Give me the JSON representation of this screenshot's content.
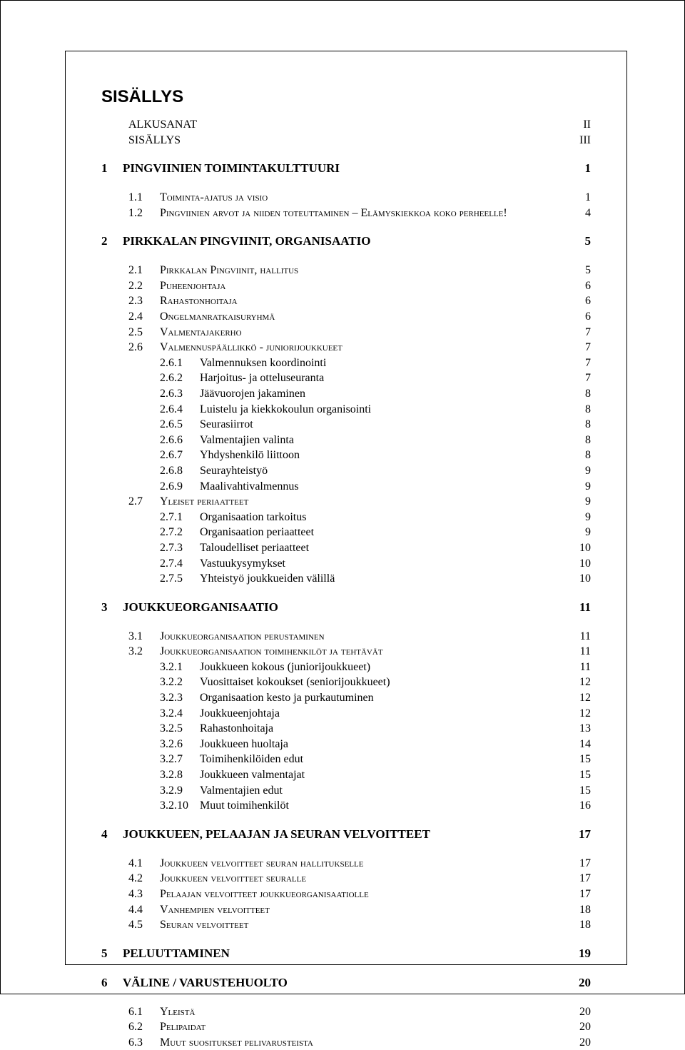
{
  "title": "SISÄLLYS",
  "front": [
    {
      "label": "ALKUSANAT",
      "page": "II"
    },
    {
      "label": "SISÄLLYS",
      "page": "III"
    }
  ],
  "chapters": [
    {
      "num": "1",
      "title": "PINGVIINIEN TOIMINTAKULTTUURI",
      "page": "1",
      "sections": [
        {
          "num": "1.1",
          "title": "Toiminta-ajatus ja visio",
          "page": "1",
          "sc": true
        },
        {
          "num": "1.2",
          "title": "Pingviinien arvot ja niiden toteuttaminen – Elämyskiekkoa koko perheelle!",
          "page": "4",
          "sc": true
        }
      ]
    },
    {
      "num": "2",
      "title": "PIRKKALAN PINGVIINIT, ORGANISAATIO",
      "page": "5",
      "sections": [
        {
          "num": "2.1",
          "title": "Pirkkalan Pingviinit, hallitus",
          "page": "5",
          "sc": true
        },
        {
          "num": "2.2",
          "title": "Puheenjohtaja",
          "page": "6",
          "sc": true
        },
        {
          "num": "2.3",
          "title": "Rahastonhoitaja",
          "page": "6",
          "sc": true
        },
        {
          "num": "2.4",
          "title": "Ongelmanratkaisuryhmä",
          "page": "6",
          "sc": true
        },
        {
          "num": "2.5",
          "title": "Valmentajakerho",
          "page": "7",
          "sc": true
        },
        {
          "num": "2.6",
          "title": "Valmennuspäällikkö - juniorijoukkueet",
          "page": "7",
          "sc": true,
          "subs": [
            {
              "num": "2.6.1",
              "title": "Valmennuksen koordinointi",
              "page": "7"
            },
            {
              "num": "2.6.2",
              "title": "Harjoitus- ja otteluseuranta",
              "page": "7"
            },
            {
              "num": "2.6.3",
              "title": "Jäävuorojen jakaminen",
              "page": "8"
            },
            {
              "num": "2.6.4",
              "title": "Luistelu ja kiekkokoulun organisointi",
              "page": "8"
            },
            {
              "num": "2.6.5",
              "title": "Seurasiirrot",
              "page": "8"
            },
            {
              "num": "2.6.6",
              "title": "Valmentajien valinta",
              "page": "8"
            },
            {
              "num": "2.6.7",
              "title": "Yhdyshenkilö liittoon",
              "page": "8"
            },
            {
              "num": "2.6.8",
              "title": "Seurayhteistyö",
              "page": "9"
            },
            {
              "num": "2.6.9",
              "title": "Maalivahtivalmennus",
              "page": "9"
            }
          ]
        },
        {
          "num": "2.7",
          "title": "Yleiset periaatteet",
          "page": "9",
          "sc": true,
          "subs": [
            {
              "num": "2.7.1",
              "title": "Organisaation tarkoitus",
              "page": "9"
            },
            {
              "num": "2.7.2",
              "title": "Organisaation periaatteet",
              "page": "9"
            },
            {
              "num": "2.7.3",
              "title": "Taloudelliset periaatteet",
              "page": "10"
            },
            {
              "num": "2.7.4",
              "title": "Vastuukysymykset",
              "page": "10"
            },
            {
              "num": "2.7.5",
              "title": "Yhteistyö joukkueiden välillä",
              "page": "10"
            }
          ]
        }
      ]
    },
    {
      "num": "3",
      "title": "JOUKKUEORGANISAATIO",
      "page": "11",
      "sections": [
        {
          "num": "3.1",
          "title": "Joukkueorganisaation perustaminen",
          "page": "11",
          "sc": true
        },
        {
          "num": "3.2",
          "title": "Joukkueorganisaation toimihenkilöt ja tehtävät",
          "page": "11",
          "sc": true,
          "subs": [
            {
              "num": "3.2.1",
              "title": "Joukkueen kokous (juniorijoukkueet)",
              "page": "11"
            },
            {
              "num": "3.2.2",
              "title": "Vuosittaiset kokoukset (seniorijoukkueet)",
              "page": "12"
            },
            {
              "num": "3.2.3",
              "title": "Organisaation kesto ja purkautuminen",
              "page": "12"
            },
            {
              "num": "3.2.4",
              "title": "Joukkueenjohtaja",
              "page": "12"
            },
            {
              "num": "3.2.5",
              "title": "Rahastonhoitaja",
              "page": "13"
            },
            {
              "num": "3.2.6",
              "title": "Joukkueen huoltaja",
              "page": "14"
            },
            {
              "num": "3.2.7",
              "title": "Toimihenkilöiden edut",
              "page": "15"
            },
            {
              "num": "3.2.8",
              "title": "Joukkueen valmentajat",
              "page": "15"
            },
            {
              "num": "3.2.9",
              "title": "Valmentajien edut",
              "page": "15"
            },
            {
              "num": "3.2.10",
              "title": "Muut toimihenkilöt",
              "page": "16"
            }
          ]
        }
      ]
    },
    {
      "num": "4",
      "title": "JOUKKUEEN, PELAAJAN JA SEURAN VELVOITTEET",
      "page": "17",
      "sections": [
        {
          "num": "4.1",
          "title": "Joukkueen velvoitteet seuran hallitukselle",
          "page": "17",
          "sc": true
        },
        {
          "num": "4.2",
          "title": "Joukkueen velvoitteet seuralle",
          "page": "17",
          "sc": true
        },
        {
          "num": "4.3",
          "title": "Pelaajan velvoitteet joukkueorganisaatiolle",
          "page": "17",
          "sc": true
        },
        {
          "num": "4.4",
          "title": "Vanhempien velvoitteet",
          "page": "18",
          "sc": true
        },
        {
          "num": "4.5",
          "title": "Seuran velvoitteet",
          "page": "18",
          "sc": true
        }
      ]
    },
    {
      "num": "5",
      "title": "PELUUTTAMINEN",
      "page": "19",
      "sections": []
    },
    {
      "num": "6",
      "title": "VÄLINE / VARUSTEHUOLTO",
      "page": "20",
      "sections": [
        {
          "num": "6.1",
          "title": "Yleistä",
          "page": "20",
          "sc": true
        },
        {
          "num": "6.2",
          "title": "Pelipaidat",
          "page": "20",
          "sc": true
        },
        {
          "num": "6.3",
          "title": "Muut suositukset pelivarusteista",
          "page": "20",
          "sc": true
        }
      ]
    }
  ]
}
